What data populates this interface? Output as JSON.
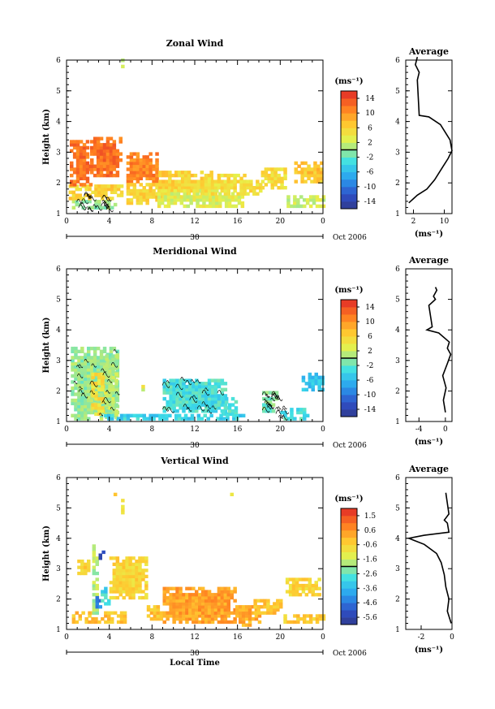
{
  "chart_data": [
    {
      "type": "heatmap",
      "title": "Zonal Wind",
      "ylabel": "Height (km)",
      "x_ticks": [
        "0",
        "4",
        "8",
        "12",
        "16",
        "20",
        "0"
      ],
      "y_ticks": [
        "1",
        "2",
        "3",
        "4",
        "5",
        "6"
      ],
      "xlim": [
        0,
        24
      ],
      "ylim": [
        1,
        6
      ],
      "day_label": "30",
      "month_label": "Oct 2006",
      "colorbar": {
        "unit": "(ms⁻¹)",
        "ticks": [
          "14",
          "10",
          "6",
          "2",
          "-2",
          "-6",
          "-10",
          "-14"
        ],
        "range": [
          -16,
          16
        ]
      },
      "patches": [
        {
          "t0": 0.5,
          "t1": 4.6,
          "h0": 1.15,
          "h1": 1.45,
          "v": 0
        },
        {
          "t0": 0.2,
          "t1": 5.2,
          "h0": 1.45,
          "h1": 1.9,
          "v": 6
        },
        {
          "t0": 0.3,
          "t1": 2.3,
          "h0": 1.9,
          "h1": 3.4,
          "v": 12
        },
        {
          "t0": 2.2,
          "t1": 5.2,
          "h0": 2.2,
          "h1": 3.5,
          "v": 12
        },
        {
          "t0": 5.6,
          "t1": 8.6,
          "h0": 2.0,
          "h1": 3.0,
          "v": 11
        },
        {
          "t0": 5.6,
          "t1": 9.0,
          "h0": 1.3,
          "h1": 2.0,
          "v": 6
        },
        {
          "t0": 8.6,
          "t1": 13.6,
          "h0": 1.5,
          "h1": 2.35,
          "v": 6
        },
        {
          "t0": 8.5,
          "t1": 16.5,
          "h0": 1.2,
          "h1": 1.8,
          "v": 3
        },
        {
          "t0": 12.6,
          "t1": 16.6,
          "h0": 1.6,
          "h1": 2.3,
          "v": 5
        },
        {
          "t0": 16.5,
          "t1": 18.2,
          "h0": 1.6,
          "h1": 2.1,
          "v": 5
        },
        {
          "t0": 18.2,
          "t1": 20.6,
          "h0": 1.8,
          "h1": 2.5,
          "v": 5
        },
        {
          "t0": 20.6,
          "t1": 24.0,
          "h0": 1.2,
          "h1": 1.6,
          "v": 2
        },
        {
          "t0": 21.3,
          "t1": 24.0,
          "h0": 2.0,
          "h1": 2.7,
          "v": 7
        },
        {
          "t0": 5.1,
          "t1": 5.3,
          "h0": 5.75,
          "h1": 6.1,
          "v": 3
        },
        {
          "t0": 4.4,
          "t1": 4.6,
          "h0": 6.35,
          "h1": 6.45,
          "v": 3
        }
      ],
      "profile": {
        "title": "Average",
        "xlabel": "(ms⁻¹)",
        "x_ticks": [
          "2",
          "10"
        ],
        "x_tick_values": [
          2,
          10
        ],
        "xlim": [
          0,
          12
        ],
        "ylim": [
          1,
          6
        ],
        "y_ticks": [
          "1",
          "2",
          "3",
          "4",
          "5",
          "6"
        ],
        "wind": [
          0.8,
          3.0,
          5.5,
          7.5,
          9.5,
          11.0,
          12.0,
          11.5,
          9.0,
          6.0,
          3.5,
          3.0,
          3.5,
          2.5,
          3.0
        ],
        "height": [
          1.35,
          1.6,
          1.8,
          2.1,
          2.5,
          2.8,
          3.05,
          3.4,
          3.9,
          4.15,
          4.2,
          5.35,
          5.6,
          5.85,
          6.1
        ]
      }
    },
    {
      "type": "heatmap",
      "title": "Meridional Wind",
      "ylabel": "Height (km)",
      "x_ticks": [
        "0",
        "4",
        "8",
        "12",
        "16",
        "20",
        "0"
      ],
      "y_ticks": [
        "1",
        "2",
        "3",
        "4",
        "5",
        "6"
      ],
      "xlim": [
        0,
        24
      ],
      "ylim": [
        1,
        6
      ],
      "day_label": "30",
      "month_label": "Oct 2006",
      "colorbar": {
        "unit": "(ms⁻¹)",
        "ticks": [
          "14",
          "10",
          "6",
          "2",
          "-2",
          "-6",
          "-10",
          "-14"
        ],
        "range": [
          -16,
          16
        ]
      },
      "patches": [
        {
          "t0": 0.4,
          "t1": 4.8,
          "h0": 1.05,
          "h1": 3.4,
          "v": 0
        },
        {
          "t0": 2.3,
          "t1": 3.6,
          "h0": 1.2,
          "h1": 2.6,
          "v": 5
        },
        {
          "t0": 3.6,
          "t1": 4.6,
          "h0": 1.1,
          "h1": 3.2,
          "v": 1
        },
        {
          "t0": 9.0,
          "t1": 14.8,
          "h0": 1.3,
          "h1": 2.4,
          "v": -3
        },
        {
          "t0": 14.5,
          "t1": 16.0,
          "h0": 1.2,
          "h1": 1.8,
          "v": -3
        },
        {
          "t0": 3.5,
          "t1": 16.5,
          "h0": 1.05,
          "h1": 1.2,
          "v": -4
        },
        {
          "t0": 18.3,
          "t1": 19.8,
          "h0": 1.3,
          "h1": 2.0,
          "v": -1
        },
        {
          "t0": 20.0,
          "t1": 22.5,
          "h0": 1.05,
          "h1": 1.4,
          "v": -3
        },
        {
          "t0": 22.0,
          "t1": 24.0,
          "h0": 2.0,
          "h1": 2.6,
          "v": -5
        },
        {
          "t0": 7.0,
          "t1": 7.3,
          "h0": 2.0,
          "h1": 2.3,
          "v": 3
        }
      ],
      "profile": {
        "title": "Average",
        "xlabel": "(ms⁻¹)",
        "x_ticks": [
          "-4",
          "0"
        ],
        "x_tick_values": [
          -4,
          0
        ],
        "xlim": [
          -6,
          1
        ],
        "ylim": [
          1,
          6
        ],
        "y_ticks": [
          "1",
          "2",
          "3",
          "4",
          "5",
          "6"
        ],
        "wind": [
          0.0,
          -0.3,
          0.1,
          -0.4,
          0.3,
          0.8,
          0.3,
          0.6,
          -1.0,
          -2.8,
          -2.0,
          -2.5,
          -1.5,
          -1.8,
          -1.3,
          -1.5
        ],
        "height": [
          1.3,
          1.7,
          2.1,
          2.5,
          2.9,
          3.2,
          3.4,
          3.6,
          3.9,
          4.0,
          4.1,
          4.8,
          5.0,
          5.1,
          5.3,
          5.4
        ]
      }
    },
    {
      "type": "heatmap",
      "title": "Vertical Wind",
      "ylabel": "Height (km)",
      "xlabel": "Local Time",
      "x_ticks": [
        "0",
        "4",
        "8",
        "12",
        "16",
        "20",
        "0"
      ],
      "y_ticks": [
        "1",
        "2",
        "3",
        "4",
        "5",
        "6"
      ],
      "xlim": [
        0,
        24
      ],
      "ylim": [
        1,
        6
      ],
      "day_label": "30",
      "month_label": "Oct 2006",
      "colorbar": {
        "unit": "(ms⁻¹)",
        "ticks": [
          "1.5",
          "0.6",
          "-0.6",
          "-1.6",
          "-2.6",
          "-3.6",
          "-4.6",
          "-5.6"
        ],
        "range": [
          -6.1,
          2.0
        ]
      },
      "patches": [
        {
          "t0": 0.5,
          "t1": 5.5,
          "h0": 1.2,
          "h1": 1.6,
          "v": -0.2
        },
        {
          "t0": 1.0,
          "t1": 2.0,
          "h0": 2.8,
          "h1": 3.3,
          "v": -0.4
        },
        {
          "t0": 2.4,
          "t1": 3.0,
          "h0": 1.5,
          "h1": 3.8,
          "v": -1.8
        },
        {
          "t0": 2.7,
          "t1": 3.1,
          "h0": 1.6,
          "h1": 2.1,
          "v": -4.5
        },
        {
          "t0": 3.0,
          "t1": 3.4,
          "h0": 3.3,
          "h1": 3.6,
          "v": -5.5
        },
        {
          "t0": 3.2,
          "t1": 4.0,
          "h0": 1.8,
          "h1": 2.4,
          "v": -3.0
        },
        {
          "t0": 4.0,
          "t1": 7.5,
          "h0": 2.0,
          "h1": 3.4,
          "v": -0.6
        },
        {
          "t0": 7.5,
          "t1": 9.0,
          "h0": 1.3,
          "h1": 1.8,
          "v": -0.2
        },
        {
          "t0": 9.0,
          "t1": 15.8,
          "h0": 1.2,
          "h1": 2.4,
          "v": 0.3
        },
        {
          "t0": 15.8,
          "t1": 18.0,
          "h0": 1.1,
          "h1": 1.8,
          "v": 0.1
        },
        {
          "t0": 17.5,
          "t1": 20.0,
          "h0": 1.5,
          "h1": 2.0,
          "v": -0.3
        },
        {
          "t0": 20.0,
          "t1": 24.0,
          "h0": 1.2,
          "h1": 1.5,
          "v": -0.4
        },
        {
          "t0": 20.5,
          "t1": 23.8,
          "h0": 2.1,
          "h1": 2.7,
          "v": -0.6
        },
        {
          "t0": 4.4,
          "t1": 4.6,
          "h0": 5.4,
          "h1": 5.5,
          "v": -0.6
        },
        {
          "t0": 5.1,
          "t1": 5.3,
          "h0": 4.8,
          "h1": 5.3,
          "v": -1.0
        },
        {
          "t0": 15.3,
          "t1": 15.5,
          "h0": 5.4,
          "h1": 5.5,
          "v": -1.2
        }
      ],
      "profile": {
        "title": "Average",
        "xlabel": "(ms⁻¹)",
        "x_ticks": [
          "-2",
          "0"
        ],
        "x_tick_values": [
          -2,
          0
        ],
        "xlim": [
          -3,
          0
        ],
        "ylim": [
          1,
          6
        ],
        "y_ticks": [
          "1",
          "2",
          "3",
          "4",
          "5",
          "6"
        ],
        "wind": [
          -0.05,
          -0.3,
          -0.2,
          -0.4,
          -0.5,
          -0.7,
          -1.0,
          -1.8,
          -2.8,
          -1.8,
          -0.2,
          -0.3,
          -0.5,
          -0.2,
          -0.4
        ],
        "height": [
          1.2,
          1.6,
          2.0,
          2.4,
          2.8,
          3.2,
          3.5,
          3.8,
          4.0,
          4.1,
          4.2,
          4.5,
          4.6,
          4.8,
          5.5
        ]
      }
    }
  ]
}
